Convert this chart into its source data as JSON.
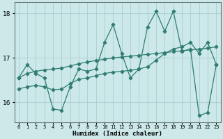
{
  "xlabel": "Humidex (Indice chaleur)",
  "background_color": "#cce8e8",
  "line_color": "#2e7d6e",
  "grid_color": "#aacece",
  "x_values": [
    0,
    1,
    2,
    3,
    4,
    5,
    6,
    7,
    8,
    9,
    10,
    11,
    12,
    13,
    14,
    15,
    16,
    17,
    18,
    19,
    20,
    21,
    22,
    23
  ],
  "y_jagged": [
    16.55,
    16.85,
    16.65,
    16.55,
    15.85,
    15.82,
    16.35,
    16.75,
    16.7,
    16.75,
    17.35,
    17.75,
    17.1,
    16.55,
    16.75,
    17.7,
    18.05,
    17.6,
    18.05,
    17.15,
    17.2,
    15.7,
    15.77,
    16.85
  ],
  "y_trend1": [
    16.55,
    16.65,
    16.7,
    16.73,
    16.75,
    16.77,
    16.82,
    16.87,
    16.91,
    16.94,
    16.97,
    17.0,
    17.02,
    17.04,
    17.06,
    17.08,
    17.1,
    17.12,
    17.14,
    17.16,
    17.18,
    17.2,
    17.22,
    17.25
  ],
  "y_trend2": [
    16.3,
    16.35,
    16.38,
    16.35,
    16.28,
    16.3,
    16.42,
    16.52,
    16.55,
    16.6,
    16.65,
    16.68,
    16.7,
    16.72,
    16.75,
    16.8,
    16.95,
    17.1,
    17.2,
    17.25,
    17.35,
    17.1,
    17.35,
    16.85
  ],
  "ylim": [
    15.55,
    18.25
  ],
  "yticks": [
    16,
    17,
    18
  ],
  "xlim": [
    -0.5,
    23.5
  ],
  "xtick_labels": [
    "0",
    "1",
    "2",
    "3",
    "4",
    "5",
    "6",
    "7",
    "8",
    "9",
    "10",
    "11",
    "12",
    "13",
    "14",
    "15",
    "16",
    "17",
    "18",
    "19",
    "20",
    "21",
    "22",
    "23"
  ]
}
